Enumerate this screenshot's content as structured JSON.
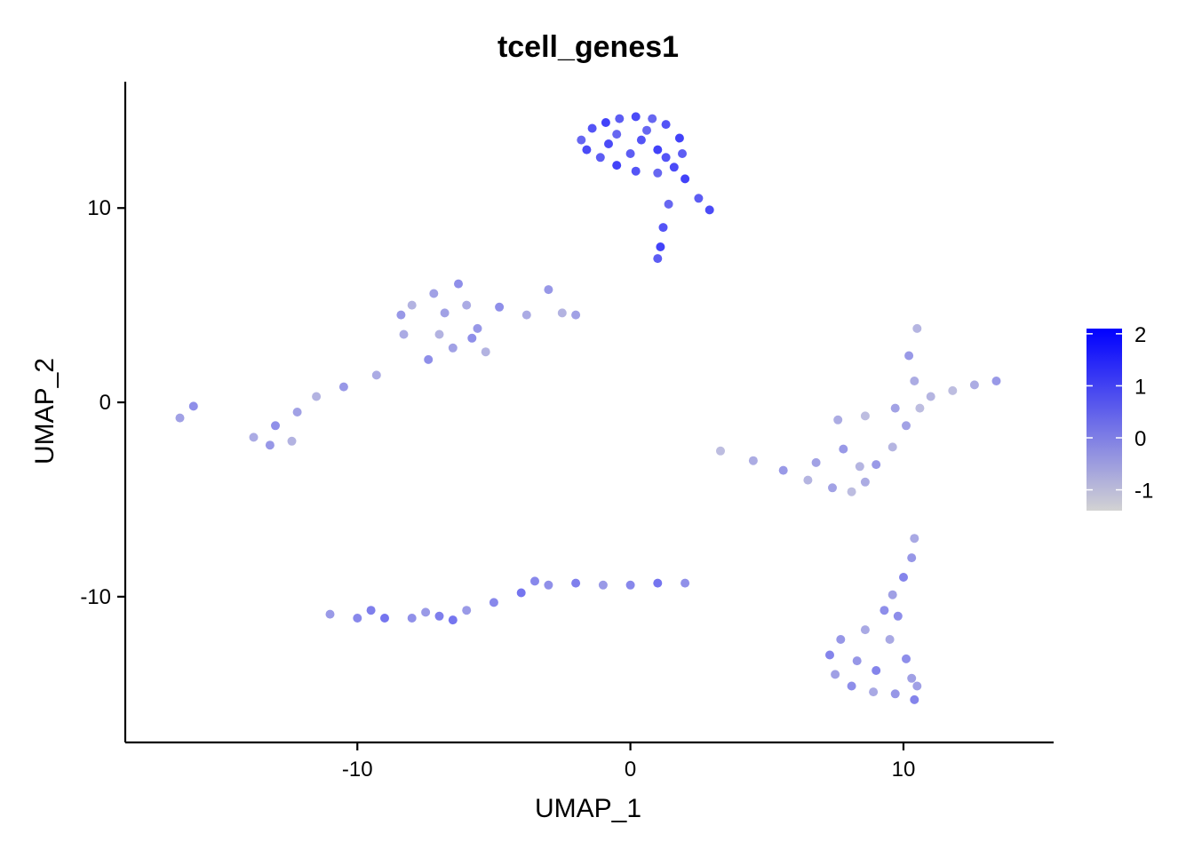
{
  "chart_data": {
    "type": "scatter",
    "title": "tcell_genes1",
    "xlabel": "UMAP_1",
    "ylabel": "UMAP_2",
    "xlim": [
      -18.5,
      15.5
    ],
    "ylim": [
      -17.5,
      16.5
    ],
    "x_ticks": [
      -10,
      0,
      10
    ],
    "x_tick_labels": [
      "-10",
      "0",
      "10"
    ],
    "y_ticks": [
      -10,
      0,
      10
    ],
    "y_tick_labels": [
      "-10",
      "0",
      "10"
    ],
    "grid": false,
    "legend": {
      "placement": "right",
      "type": "colorbar",
      "ticks": [
        2,
        1,
        0,
        -1
      ],
      "tick_labels": [
        "2",
        "1",
        "0",
        "-1"
      ],
      "min": -1.4,
      "max": 2.1,
      "low_color": "#d3d3d3",
      "high_color": "#0000ff"
    },
    "clusters": [
      {
        "id": "top",
        "x": 0.2,
        "y": 13.0,
        "expression_mean": 1.2,
        "points": [
          [
            -1.8,
            13.5
          ],
          [
            -1.4,
            14.1
          ],
          [
            -0.9,
            14.4
          ],
          [
            -0.4,
            14.6
          ],
          [
            0.2,
            14.7
          ],
          [
            0.8,
            14.6
          ],
          [
            1.3,
            14.3
          ],
          [
            1.8,
            13.6
          ],
          [
            1.9,
            12.8
          ],
          [
            1.6,
            12.1
          ],
          [
            1.0,
            11.8
          ],
          [
            0.2,
            11.9
          ],
          [
            -0.5,
            12.2
          ],
          [
            -1.1,
            12.6
          ],
          [
            -1.6,
            13.0
          ],
          [
            -0.5,
            13.8
          ],
          [
            0.4,
            13.5
          ],
          [
            1.0,
            13.0
          ],
          [
            0.0,
            12.8
          ],
          [
            -0.8,
            13.3
          ],
          [
            0.6,
            14.0
          ],
          [
            1.3,
            12.6
          ],
          [
            2.0,
            11.5
          ],
          [
            2.5,
            10.5
          ],
          [
            2.9,
            9.9
          ],
          [
            1.4,
            10.2
          ],
          [
            1.2,
            9.0
          ],
          [
            1.1,
            8.0
          ],
          [
            1.0,
            7.4
          ]
        ]
      },
      {
        "id": "upper-left",
        "x": -7.5,
        "y": 2.5,
        "expression_mean": -0.3,
        "points": [
          [
            -8.0,
            5.0
          ],
          [
            -7.2,
            5.6
          ],
          [
            -6.3,
            6.1
          ],
          [
            -6.0,
            5.0
          ],
          [
            -5.6,
            3.8
          ],
          [
            -5.3,
            2.6
          ],
          [
            -6.5,
            2.8
          ],
          [
            -7.4,
            2.2
          ],
          [
            -8.3,
            3.5
          ],
          [
            -8.4,
            4.5
          ],
          [
            -7.0,
            3.5
          ],
          [
            -6.8,
            4.6
          ],
          [
            -4.8,
            4.9
          ],
          [
            -3.8,
            4.5
          ],
          [
            -3.0,
            5.8
          ],
          [
            -2.5,
            4.6
          ],
          [
            -2.0,
            4.5
          ],
          [
            -5.8,
            3.3
          ],
          [
            -9.3,
            1.4
          ],
          [
            -10.5,
            0.8
          ],
          [
            -11.5,
            0.3
          ],
          [
            -12.2,
            -0.5
          ],
          [
            -13.0,
            -1.2
          ],
          [
            -13.8,
            -1.8
          ],
          [
            -13.2,
            -2.2
          ],
          [
            -12.4,
            -2.0
          ],
          [
            -16.5,
            -0.8
          ],
          [
            -16.0,
            -0.2
          ]
        ]
      },
      {
        "id": "right",
        "x": 8.5,
        "y": -1.5,
        "expression_mean": -0.5,
        "points": [
          [
            3.3,
            -2.5
          ],
          [
            4.5,
            -3.0
          ],
          [
            5.6,
            -3.5
          ],
          [
            6.5,
            -4.0
          ],
          [
            7.4,
            -4.4
          ],
          [
            8.1,
            -4.6
          ],
          [
            8.6,
            -4.1
          ],
          [
            9.0,
            -3.2
          ],
          [
            9.6,
            -2.3
          ],
          [
            10.1,
            -1.2
          ],
          [
            10.6,
            -0.3
          ],
          [
            10.4,
            1.1
          ],
          [
            10.2,
            2.4
          ],
          [
            10.5,
            3.8
          ],
          [
            9.7,
            -0.3
          ],
          [
            8.6,
            -0.7
          ],
          [
            7.6,
            -0.9
          ],
          [
            7.8,
            -2.4
          ],
          [
            8.4,
            -3.3
          ],
          [
            6.8,
            -3.1
          ],
          [
            11.8,
            0.6
          ],
          [
            12.6,
            0.9
          ],
          [
            13.4,
            1.1
          ],
          [
            11.0,
            0.3
          ]
        ]
      },
      {
        "id": "bottom",
        "x": -4.5,
        "y": -10.3,
        "expression_mean": 0.2,
        "points": [
          [
            -11.0,
            -10.9
          ],
          [
            -10.0,
            -11.1
          ],
          [
            -9.0,
            -11.1
          ],
          [
            -8.0,
            -11.1
          ],
          [
            -7.0,
            -11.0
          ],
          [
            -6.0,
            -10.7
          ],
          [
            -5.0,
            -10.3
          ],
          [
            -4.0,
            -9.8
          ],
          [
            -3.0,
            -9.4
          ],
          [
            -2.0,
            -9.3
          ],
          [
            -1.0,
            -9.4
          ],
          [
            0.0,
            -9.4
          ],
          [
            1.0,
            -9.3
          ],
          [
            2.0,
            -9.3
          ],
          [
            -9.5,
            -10.7
          ],
          [
            -7.5,
            -10.8
          ],
          [
            -3.5,
            -9.2
          ],
          [
            -6.5,
            -11.2
          ]
        ]
      },
      {
        "id": "lower-right",
        "x": 9.2,
        "y": -12.5,
        "expression_mean": -0.1,
        "points": [
          [
            10.4,
            -7.0
          ],
          [
            10.3,
            -8.0
          ],
          [
            10.0,
            -9.0
          ],
          [
            9.6,
            -9.9
          ],
          [
            9.3,
            -10.7
          ],
          [
            8.6,
            -11.7
          ],
          [
            7.7,
            -12.2
          ],
          [
            7.3,
            -13.0
          ],
          [
            7.5,
            -14.0
          ],
          [
            8.1,
            -14.6
          ],
          [
            8.9,
            -14.9
          ],
          [
            9.7,
            -15.0
          ],
          [
            10.4,
            -15.3
          ],
          [
            10.5,
            -14.6
          ],
          [
            10.1,
            -13.2
          ],
          [
            9.5,
            -12.2
          ],
          [
            8.3,
            -13.3
          ],
          [
            9.0,
            -13.8
          ],
          [
            10.3,
            -14.2
          ],
          [
            9.8,
            -11.0
          ]
        ]
      }
    ]
  }
}
